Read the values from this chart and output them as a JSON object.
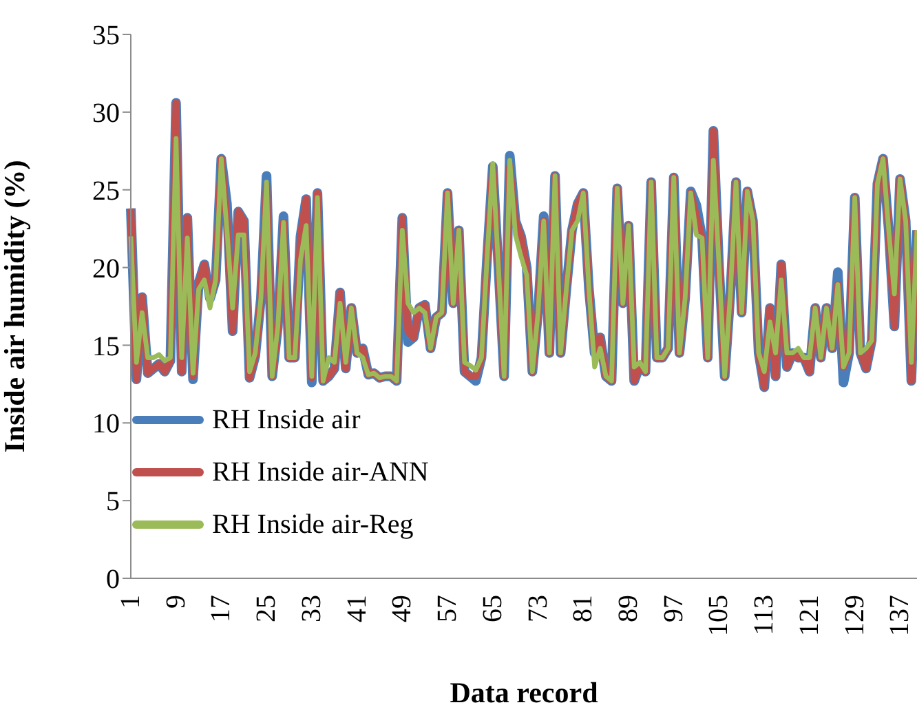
{
  "chart_data": {
    "type": "line",
    "xlabel": "Data record",
    "ylabel": "Inside air humidity (%)",
    "categories": [
      "1",
      null,
      null,
      null,
      null,
      null,
      null,
      null,
      "9",
      null,
      null,
      null,
      null,
      null,
      null,
      null,
      "17",
      null,
      null,
      null,
      null,
      null,
      null,
      null,
      "25",
      null,
      null,
      null,
      null,
      null,
      null,
      null,
      "33",
      null,
      null,
      null,
      null,
      null,
      null,
      null,
      "41",
      null,
      null,
      null,
      null,
      null,
      null,
      null,
      "49",
      null,
      null,
      null,
      null,
      null,
      null,
      null,
      "57",
      null,
      null,
      null,
      null,
      null,
      null,
      null,
      "65",
      null,
      null,
      null,
      null,
      null,
      null,
      null,
      "73",
      null,
      null,
      null,
      null,
      null,
      null,
      null,
      "81",
      null,
      null,
      null,
      null,
      null,
      null,
      null,
      "89",
      null,
      null,
      null,
      null,
      null,
      null,
      null,
      "97",
      null,
      null,
      null,
      null,
      null,
      null,
      null,
      "105",
      null,
      null,
      null,
      null,
      null,
      null,
      null,
      "113",
      null,
      null,
      null,
      null,
      null,
      null,
      null,
      "121",
      null,
      null,
      null,
      null,
      null,
      null,
      null,
      "129",
      null,
      null,
      null,
      null,
      null,
      null,
      null,
      "137",
      null,
      null,
      null
    ],
    "series": [
      {
        "name": "RH Inside air",
        "color": "#4a7ebb",
        "values": [
          23.8,
          12.8,
          18.1,
          13.2,
          13.5,
          13.8,
          13.3,
          14.0,
          30.6,
          13.3,
          23.2,
          12.8,
          19.0,
          20.2,
          18.0,
          19.2,
          27.0,
          24.1,
          15.9,
          23.6,
          23.0,
          12.9,
          14.3,
          18.0,
          25.9,
          13.0,
          16.2,
          23.3,
          14.2,
          14.2,
          22.0,
          24.4,
          12.6,
          24.8,
          12.7,
          13.0,
          13.5,
          18.4,
          13.5,
          17.4,
          14.5,
          14.8,
          13.1,
          13.2,
          12.9,
          13.0,
          13.0,
          12.7,
          23.2,
          15.2,
          15.5,
          17.4,
          17.6,
          14.8,
          16.8,
          17.1,
          24.8,
          17.7,
          22.4,
          13.3,
          13.0,
          12.7,
          14.2,
          20.7,
          26.5,
          20.0,
          13.0,
          27.2,
          23.0,
          22.0,
          20.0,
          13.3,
          17.1,
          23.3,
          14.5,
          25.9,
          14.5,
          18.6,
          22.4,
          24.1,
          24.8,
          18.6,
          14.5,
          15.5,
          13.0,
          12.7,
          25.1,
          17.7,
          22.7,
          12.7,
          13.7,
          13.3,
          25.5,
          14.2,
          14.2,
          14.8,
          25.8,
          14.5,
          18.0,
          24.9,
          24.0,
          21.9,
          14.2,
          28.8,
          20.1,
          13.0,
          18.3,
          25.5,
          17.1,
          24.9,
          23.0,
          14.5,
          12.3,
          17.4,
          13.0,
          20.2,
          13.6,
          14.5,
          14.2,
          14.2,
          13.3,
          17.4,
          14.2,
          17.4,
          14.8,
          19.7,
          12.6,
          14.5,
          24.5,
          14.5,
          13.5,
          15.3,
          25.4,
          27.0,
          22.4,
          16.2,
          25.7,
          23.0,
          12.7,
          22.4
        ]
      },
      {
        "name": "RH Inside air-ANN",
        "color": "#c0504d",
        "values": [
          23.8,
          12.8,
          18.1,
          13.2,
          13.5,
          13.8,
          13.3,
          14.0,
          30.6,
          13.3,
          23.2,
          13.0,
          19.0,
          20.2,
          18.0,
          19.2,
          27.0,
          23.0,
          15.9,
          23.6,
          23.0,
          12.9,
          14.3,
          18.0,
          25.3,
          13.0,
          16.2,
          22.9,
          14.2,
          14.2,
          22.0,
          24.4,
          12.9,
          24.8,
          12.7,
          13.0,
          13.5,
          18.4,
          13.5,
          17.4,
          14.5,
          14.8,
          13.1,
          13.2,
          12.9,
          13.0,
          13.0,
          12.7,
          23.2,
          15.9,
          15.5,
          17.4,
          17.6,
          14.8,
          16.8,
          17.1,
          24.8,
          17.7,
          22.4,
          13.3,
          13.0,
          13.0,
          14.2,
          20.7,
          26.5,
          20.0,
          13.0,
          26.5,
          23.0,
          22.0,
          20.0,
          13.3,
          17.1,
          23.0,
          14.5,
          25.9,
          14.5,
          18.6,
          22.4,
          24.1,
          24.8,
          18.6,
          14.5,
          15.5,
          13.0,
          12.7,
          25.1,
          17.7,
          22.7,
          12.7,
          13.7,
          13.3,
          25.5,
          14.2,
          14.2,
          14.8,
          25.8,
          14.5,
          18.0,
          24.8,
          23.3,
          21.9,
          14.2,
          28.8,
          20.1,
          13.0,
          18.3,
          25.5,
          17.1,
          24.9,
          23.0,
          14.5,
          12.3,
          17.4,
          13.0,
          20.2,
          13.6,
          14.5,
          14.2,
          14.2,
          13.3,
          17.4,
          14.2,
          17.4,
          14.8,
          18.9,
          13.6,
          14.5,
          24.5,
          14.5,
          13.5,
          15.3,
          25.4,
          27.0,
          22.4,
          16.2,
          25.7,
          23.0,
          12.7,
          22.4
        ]
      },
      {
        "name": "RH Inside air-Reg",
        "color": "#9bbb59",
        "values": [
          22.0,
          13.9,
          17.1,
          14.2,
          14.2,
          14.4,
          14.0,
          14.2,
          28.3,
          14.2,
          21.9,
          13.2,
          18.6,
          19.2,
          17.4,
          19.2,
          27.0,
          22.4,
          17.4,
          22.1,
          22.1,
          13.3,
          14.5,
          18.0,
          25.5,
          13.0,
          16.2,
          22.9,
          14.2,
          14.2,
          20.5,
          22.7,
          13.0,
          24.5,
          12.7,
          14.2,
          13.9,
          17.7,
          13.9,
          17.4,
          14.5,
          14.2,
          13.1,
          13.2,
          12.9,
          13.0,
          13.0,
          12.7,
          22.4,
          17.7,
          17.1,
          17.4,
          17.1,
          14.8,
          16.8,
          17.1,
          24.8,
          17.7,
          22.4,
          13.9,
          13.7,
          13.4,
          14.2,
          20.7,
          26.7,
          20.0,
          13.0,
          26.9,
          22.1,
          20.7,
          19.5,
          13.3,
          17.1,
          23.0,
          14.5,
          25.9,
          14.5,
          18.6,
          22.4,
          23.0,
          24.8,
          18.6,
          13.6,
          14.8,
          13.0,
          12.7,
          25.1,
          17.7,
          22.7,
          13.6,
          13.9,
          13.3,
          25.5,
          14.2,
          14.2,
          14.8,
          25.8,
          14.5,
          18.0,
          24.8,
          22.1,
          21.9,
          14.2,
          26.9,
          20.1,
          13.0,
          18.3,
          25.5,
          17.1,
          24.9,
          23.0,
          14.5,
          13.3,
          16.5,
          14.5,
          19.2,
          14.5,
          14.5,
          14.8,
          14.2,
          14.2,
          17.4,
          14.2,
          17.4,
          14.8,
          18.9,
          13.6,
          14.5,
          24.5,
          14.5,
          14.8,
          15.3,
          25.4,
          27.0,
          22.4,
          18.3,
          25.7,
          23.0,
          13.9,
          22.4
        ]
      }
    ],
    "ylim": [
      0,
      35
    ],
    "yticks": [
      0,
      5,
      10,
      15,
      20,
      25,
      30,
      35
    ],
    "grid": false,
    "legend": "bottom left"
  }
}
